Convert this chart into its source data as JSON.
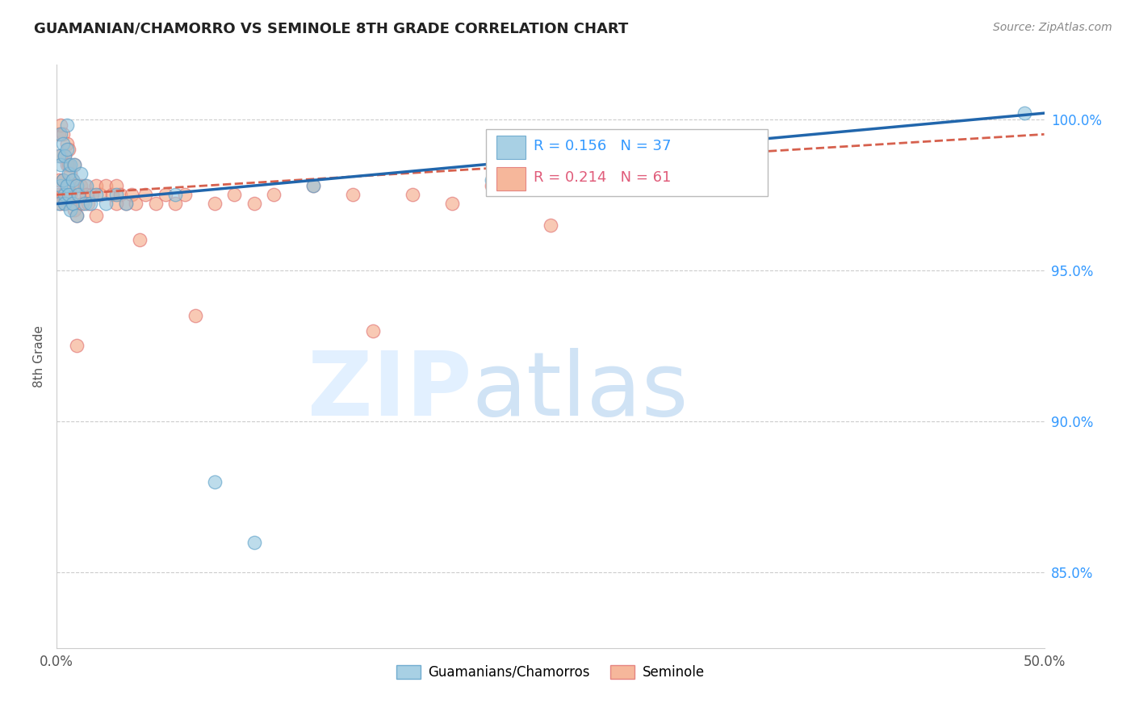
{
  "title": "GUAMANIAN/CHAMORRO VS SEMINOLE 8TH GRADE CORRELATION CHART",
  "source": "Source: ZipAtlas.com",
  "ylabel_label": "8th Grade",
  "xmin": 0.0,
  "xmax": 0.5,
  "ymin": 82.5,
  "ymax": 101.8,
  "blue_R": 0.156,
  "blue_N": 37,
  "pink_R": 0.214,
  "pink_N": 61,
  "blue_color": "#92c5de",
  "pink_color": "#f4a582",
  "blue_scatter_edge": "#5a9fc8",
  "pink_scatter_edge": "#e07070",
  "blue_line_color": "#2166ac",
  "pink_line_color": "#d6604d",
  "legend_blue_label": "Guamanians/Chamorros",
  "legend_pink_label": "Seminole",
  "background_color": "#ffffff",
  "grid_color": "#cccccc",
  "yticks": [
    85.0,
    90.0,
    95.0,
    100.0
  ],
  "blue_x": [
    0.001,
    0.001,
    0.002,
    0.002,
    0.002,
    0.003,
    0.003,
    0.004,
    0.004,
    0.004,
    0.005,
    0.005,
    0.006,
    0.006,
    0.007,
    0.007,
    0.008,
    0.008,
    0.009,
    0.01,
    0.01,
    0.011,
    0.012,
    0.014,
    0.015,
    0.017,
    0.02,
    0.025,
    0.03,
    0.035,
    0.06,
    0.08,
    0.1,
    0.13,
    0.22,
    0.49,
    0.005
  ],
  "blue_y": [
    97.2,
    98.8,
    99.5,
    98.5,
    97.8,
    99.2,
    98.0,
    97.5,
    98.8,
    97.2,
    99.0,
    97.8,
    98.2,
    97.5,
    98.5,
    97.0,
    98.0,
    97.2,
    98.5,
    97.8,
    96.8,
    97.5,
    98.2,
    97.2,
    97.8,
    97.2,
    97.5,
    97.2,
    97.5,
    97.2,
    97.5,
    88.0,
    86.0,
    97.8,
    98.0,
    100.2,
    99.8
  ],
  "pink_x": [
    0.001,
    0.001,
    0.001,
    0.002,
    0.002,
    0.002,
    0.003,
    0.003,
    0.003,
    0.004,
    0.004,
    0.005,
    0.005,
    0.006,
    0.006,
    0.006,
    0.007,
    0.007,
    0.008,
    0.008,
    0.009,
    0.009,
    0.01,
    0.01,
    0.011,
    0.012,
    0.013,
    0.014,
    0.015,
    0.016,
    0.018,
    0.02,
    0.022,
    0.025,
    0.028,
    0.03,
    0.032,
    0.035,
    0.038,
    0.04,
    0.042,
    0.045,
    0.05,
    0.055,
    0.06,
    0.065,
    0.07,
    0.08,
    0.09,
    0.1,
    0.11,
    0.13,
    0.15,
    0.16,
    0.18,
    0.2,
    0.22,
    0.25,
    0.01,
    0.02,
    0.03
  ],
  "pink_y": [
    97.5,
    99.5,
    98.0,
    99.8,
    98.8,
    97.2,
    99.5,
    98.0,
    97.5,
    98.8,
    97.2,
    99.2,
    98.5,
    99.0,
    97.8,
    98.5,
    98.2,
    97.5,
    98.0,
    97.2,
    98.5,
    97.0,
    97.8,
    96.8,
    97.5,
    97.8,
    97.2,
    97.8,
    97.5,
    97.2,
    97.5,
    97.8,
    97.5,
    97.8,
    97.5,
    97.8,
    97.5,
    97.2,
    97.5,
    97.2,
    96.0,
    97.5,
    97.2,
    97.5,
    97.2,
    97.5,
    93.5,
    97.2,
    97.5,
    97.2,
    97.5,
    97.8,
    97.5,
    93.0,
    97.5,
    97.2,
    97.8,
    96.5,
    92.5,
    96.8,
    97.2
  ],
  "blue_line_x0": 0.0,
  "blue_line_x1": 0.5,
  "blue_line_y0": 97.2,
  "blue_line_y1": 100.2,
  "pink_line_x0": 0.0,
  "pink_line_x1": 0.5,
  "pink_line_y0": 97.5,
  "pink_line_y1": 99.5
}
